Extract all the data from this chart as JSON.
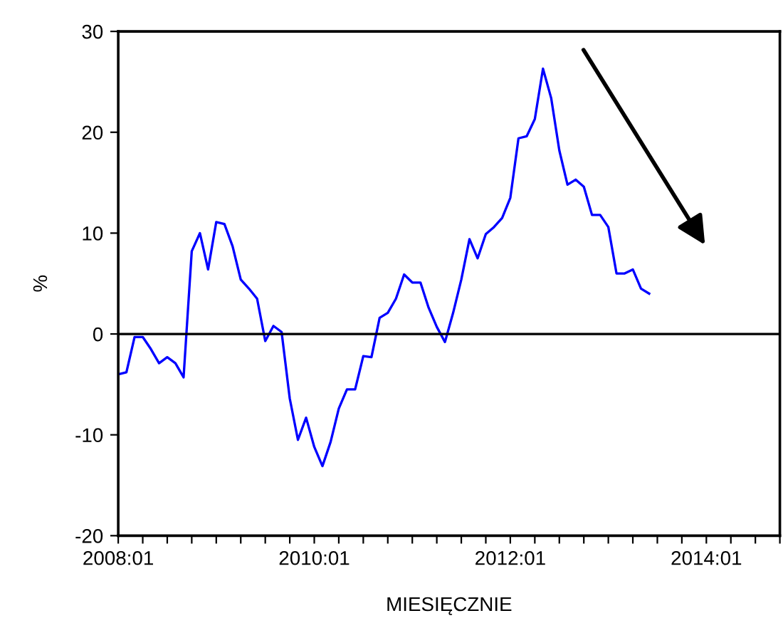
{
  "chart_data": {
    "type": "line",
    "xlabel": "MIESIĘCZNIE",
    "ylabel": "%",
    "x": [
      "2008-01",
      "2008-02",
      "2008-03",
      "2008-04",
      "2008-05",
      "2008-06",
      "2008-07",
      "2008-08",
      "2008-09",
      "2008-10",
      "2008-11",
      "2008-12",
      "2009-01",
      "2009-02",
      "2009-03",
      "2009-04",
      "2009-05",
      "2009-06",
      "2009-07",
      "2009-08",
      "2009-09",
      "2009-10",
      "2009-11",
      "2009-12",
      "2010-01",
      "2010-02",
      "2010-03",
      "2010-04",
      "2010-05",
      "2010-06",
      "2010-07",
      "2010-08",
      "2010-09",
      "2010-10",
      "2010-11",
      "2010-12",
      "2011-01",
      "2011-02",
      "2011-03",
      "2011-04",
      "2011-05",
      "2011-06",
      "2011-07",
      "2011-08",
      "2011-09",
      "2011-10",
      "2011-11",
      "2011-12",
      "2012-01",
      "2012-02",
      "2012-03",
      "2012-04",
      "2012-05",
      "2012-06",
      "2012-07",
      "2012-08",
      "2012-09",
      "2012-10",
      "2012-11",
      "2012-12",
      "2013-01",
      "2013-02",
      "2013-03",
      "2013-04",
      "2013-05",
      "2013-06"
    ],
    "series": [
      {
        "color": "#0000ff",
        "values": [
          -4.0,
          -3.8,
          -0.3,
          -0.3,
          -1.5,
          -2.9,
          -2.3,
          -2.9,
          -4.3,
          8.2,
          10.0,
          6.4,
          11.1,
          10.9,
          8.7,
          5.4,
          4.5,
          3.5,
          -0.7,
          0.8,
          0.2,
          -6.4,
          -10.5,
          -8.3,
          -11.2,
          -13.1,
          -10.7,
          -7.4,
          -5.5,
          -5.5,
          -2.2,
          -2.3,
          1.6,
          2.1,
          3.5,
          5.9,
          5.1,
          5.1,
          2.6,
          0.7,
          -0.8,
          2.1,
          5.4,
          9.4,
          7.5,
          9.9,
          10.6,
          11.5,
          13.5,
          19.4,
          19.6,
          21.3,
          26.3,
          23.4,
          18.2,
          14.8,
          15.3,
          14.6,
          11.8,
          11.8,
          10.6,
          6.0,
          6.0,
          6.4,
          4.5,
          4.0
        ]
      }
    ],
    "xlim": [
      "2008-01",
      "2014-10"
    ],
    "xticks": [
      {
        "value": "2008-01",
        "label": "2008:01"
      },
      {
        "value": "2008-04",
        "label": null
      },
      {
        "value": "2008-07",
        "label": null
      },
      {
        "value": "2008-10",
        "label": null
      },
      {
        "value": "2009-01",
        "label": null
      },
      {
        "value": "2009-04",
        "label": null
      },
      {
        "value": "2009-07",
        "label": null
      },
      {
        "value": "2009-10",
        "label": null
      },
      {
        "value": "2010-01",
        "label": "2010:01"
      },
      {
        "value": "2010-04",
        "label": null
      },
      {
        "value": "2010-07",
        "label": null
      },
      {
        "value": "2010-10",
        "label": null
      },
      {
        "value": "2011-01",
        "label": null
      },
      {
        "value": "2011-04",
        "label": null
      },
      {
        "value": "2011-07",
        "label": null
      },
      {
        "value": "2011-10",
        "label": null
      },
      {
        "value": "2012-01",
        "label": "2012:01"
      },
      {
        "value": "2012-04",
        "label": null
      },
      {
        "value": "2012-07",
        "label": null
      },
      {
        "value": "2012-10",
        "label": null
      },
      {
        "value": "2013-01",
        "label": null
      },
      {
        "value": "2013-04",
        "label": null
      },
      {
        "value": "2013-07",
        "label": null
      },
      {
        "value": "2013-10",
        "label": null
      },
      {
        "value": "2014-01",
        "label": "2014:01"
      },
      {
        "value": "2014-04",
        "label": null
      },
      {
        "value": "2014-07",
        "label": null
      },
      {
        "value": "2014-10",
        "label": null
      }
    ],
    "ylim": [
      -20,
      30
    ],
    "yticks": [
      -20,
      -10,
      0,
      10,
      20,
      30
    ],
    "ref_lines": [
      {
        "axis": "y",
        "value": 0,
        "color": "#000000"
      }
    ],
    "grid": false,
    "legend": false,
    "marker": "none",
    "line_style": "solid"
  }
}
